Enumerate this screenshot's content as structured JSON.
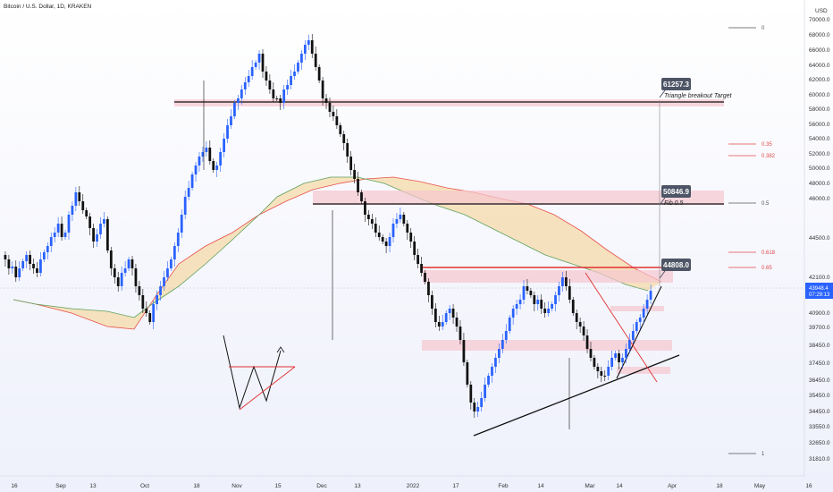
{
  "header": {
    "title": "Bitcoin / U.S. Dollar, 1D, KRAKEN"
  },
  "chart_data": {
    "type": "candlestick",
    "currency": "USD",
    "y_ticks": [
      "70000.0",
      "68000.0",
      "66000.0",
      "64000.0",
      "62000.0",
      "60000.0",
      "58000.0",
      "56000.0",
      "54000.0",
      "52000.0",
      "50000.0",
      "48000.0",
      "46000.0",
      "44500.0",
      "42100.0",
      "40900.0",
      "39700.0",
      "38450.0",
      "37450.0",
      "36450.0",
      "35450.0",
      "34450.0",
      "33550.0",
      "32650.0",
      "31810.0"
    ],
    "x_ticks": [
      "16",
      "Sep",
      "13",
      "Oct",
      "18",
      "Nov",
      "15",
      "Dec",
      "13",
      "2022",
      "17",
      "Feb",
      "14",
      "Mar",
      "14",
      "Apr",
      "18",
      "May",
      "16"
    ],
    "fib_levels": [
      {
        "label": "0",
        "color": "#555555"
      },
      {
        "label": "0.35",
        "color": "#e04a4a"
      },
      {
        "label": "0.382",
        "color": "#e04a4a"
      },
      {
        "label": "0.5",
        "color": "#555555"
      },
      {
        "label": "0.618",
        "color": "#e04a4a"
      },
      {
        "label": "0.65",
        "color": "#e04a4a"
      },
      {
        "label": "1",
        "color": "#555555"
      }
    ],
    "callouts": [
      {
        "value": "61257.3",
        "text": "Triangle breakout Target"
      },
      {
        "value": "50846.9",
        "text": "Fib 0.5"
      },
      {
        "value": "44808.0",
        "text": ""
      }
    ],
    "last_price": {
      "value": "43948.4",
      "countdown": "07:29:13"
    },
    "colors": {
      "up": "#2962ff",
      "down": "#111111",
      "ribbon_fill": "#f5d9a8",
      "zone_fill": "#f6c6cf",
      "ma_fast": "#e8504a",
      "ma_slow": "#5ca15c"
    }
  }
}
